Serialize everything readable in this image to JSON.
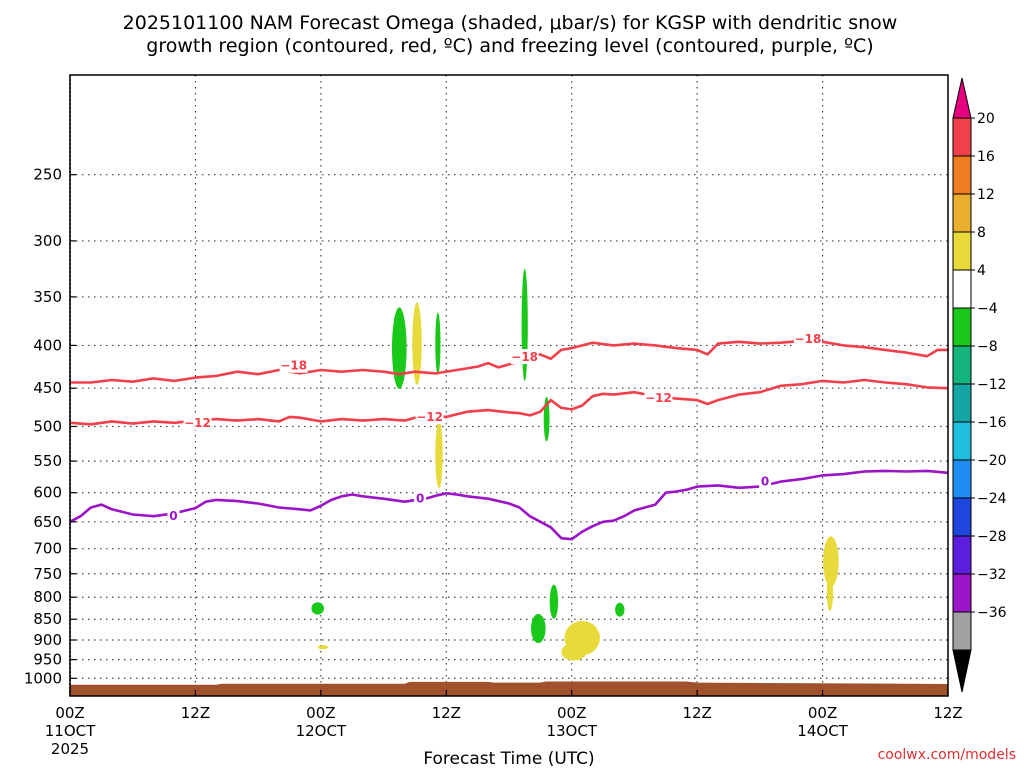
{
  "chart_data": {
    "type": "heatmap",
    "title_lines": [
      "2025101100 NAM Forecast Omega (shaded, μbar/s) for KGSP with dendritic snow",
      "growth region (contoured, red, ºC) and freezing level (contoured, purple, ºC)"
    ],
    "xlabel": "Forecast Time (UTC)",
    "ylabel": "",
    "credit": "coolwx.com/models",
    "x_hours_range": [
      0,
      84
    ],
    "y_pressure_range": [
      1050,
      190
    ],
    "grid": true,
    "x_ticks": [
      {
        "h": 0,
        "line1": "00Z",
        "line2": "11OCT",
        "line3": "2025"
      },
      {
        "h": 12,
        "line1": "12Z",
        "line2": "",
        "line3": ""
      },
      {
        "h": 24,
        "line1": "00Z",
        "line2": "12OCT",
        "line3": ""
      },
      {
        "h": 36,
        "line1": "12Z",
        "line2": "",
        "line3": ""
      },
      {
        "h": 48,
        "line1": "00Z",
        "line2": "13OCT",
        "line3": ""
      },
      {
        "h": 60,
        "line1": "12Z",
        "line2": "",
        "line3": ""
      },
      {
        "h": 72,
        "line1": "00Z",
        "line2": "14OCT",
        "line3": ""
      },
      {
        "h": 84,
        "line1": "12Z",
        "line2": "",
        "line3": ""
      }
    ],
    "y_ticks": [
      {
        "p": 250,
        "label": "250"
      },
      {
        "p": 300,
        "label": "300"
      },
      {
        "p": 350,
        "label": "350"
      },
      {
        "p": 400,
        "label": "400"
      },
      {
        "p": 450,
        "label": "450"
      },
      {
        "p": 500,
        "label": "500"
      },
      {
        "p": 550,
        "label": "550"
      },
      {
        "p": 600,
        "label": "600"
      },
      {
        "p": 650,
        "label": "650"
      },
      {
        "p": 700,
        "label": "700"
      },
      {
        "p": 750,
        "label": "750"
      },
      {
        "p": 800,
        "label": "800"
      },
      {
        "p": 850,
        "label": "850"
      },
      {
        "p": 900,
        "label": "900"
      },
      {
        "p": 950,
        "label": "950"
      },
      {
        "p": 1000,
        "label": "1000"
      }
    ],
    "colorbar": {
      "top_arrow_color": "#e6007f",
      "bottom_arrow_color": "#000000",
      "bins": [
        {
          "color": "#f2404a"
        },
        {
          "color": "#f07d1f"
        },
        {
          "color": "#e9b030"
        },
        {
          "color": "#e8da3a"
        },
        {
          "color": "#ffffff"
        },
        {
          "color": "#19c819"
        },
        {
          "color": "#14b47d"
        },
        {
          "color": "#14a5a5"
        },
        {
          "color": "#1ebedc"
        },
        {
          "color": "#1e8cf0"
        },
        {
          "color": "#1e46dc"
        },
        {
          "color": "#5a1edc"
        },
        {
          "color": "#9b14c8"
        },
        {
          "color": "#a0a0a0"
        }
      ],
      "labels": [
        "20",
        "16",
        "12",
        "8",
        "4",
        "−4",
        "−8",
        "−12",
        "−16",
        "−20",
        "−24",
        "−28",
        "−32",
        "−36"
      ]
    },
    "ground": {
      "color": "#a0522d",
      "surface": [
        {
          "h": 0,
          "p": 1018
        },
        {
          "h": 14,
          "p": 1018
        },
        {
          "h": 14.5,
          "p": 1015
        },
        {
          "h": 32,
          "p": 1015
        },
        {
          "h": 32.5,
          "p": 1010
        },
        {
          "h": 40,
          "p": 1010
        },
        {
          "h": 40.5,
          "p": 1012
        },
        {
          "h": 45,
          "p": 1012
        },
        {
          "h": 45.5,
          "p": 1009
        },
        {
          "h": 59,
          "p": 1009
        },
        {
          "h": 60,
          "p": 1012
        },
        {
          "h": 84,
          "p": 1016
        }
      ]
    },
    "omega_blobs": [
      {
        "h": 31.5,
        "p": 403,
        "rh": 0.7,
        "rp": 45,
        "color": "#19c819",
        "value": -6
      },
      {
        "h": 33.2,
        "p": 398,
        "rh": 0.45,
        "rp": 45,
        "color": "#e8da3a",
        "value": 6
      },
      {
        "h": 35.2,
        "p": 398,
        "rh": 0.25,
        "rp": 34,
        "color": "#19c819",
        "value": -6
      },
      {
        "h": 43.5,
        "p": 378,
        "rh": 0.3,
        "rp": 58,
        "color": "#19c819",
        "value": -6
      },
      {
        "h": 45.6,
        "p": 490,
        "rh": 0.28,
        "rp": 30,
        "color": "#19c819",
        "value": -6
      },
      {
        "h": 35.3,
        "p": 540,
        "rh": 0.35,
        "rp": 50,
        "color": "#e8da3a",
        "value": 6
      },
      {
        "h": 23.7,
        "p": 825,
        "rh": 0.6,
        "rp": 14,
        "color": "#19c819",
        "value": -6
      },
      {
        "h": 24.2,
        "p": 918,
        "rh": 0.5,
        "rp": 5,
        "color": "#e8da3a",
        "value": 6
      },
      {
        "h": 44.8,
        "p": 872,
        "rh": 0.7,
        "rp": 35,
        "color": "#19c819",
        "value": -6
      },
      {
        "h": 46.3,
        "p": 810,
        "rh": 0.4,
        "rp": 38,
        "color": "#19c819",
        "value": -6
      },
      {
        "h": 49.0,
        "p": 895,
        "rh": 1.7,
        "rp": 42,
        "color": "#e8da3a",
        "value": 6
      },
      {
        "h": 48.2,
        "p": 930,
        "rh": 1.2,
        "rp": 22,
        "color": "#e8da3a",
        "value": 6
      },
      {
        "h": 52.6,
        "p": 828,
        "rh": 0.45,
        "rp": 16,
        "color": "#19c819",
        "value": -6
      },
      {
        "h": 72.8,
        "p": 725,
        "rh": 0.75,
        "rp": 50,
        "color": "#e8da3a",
        "value": 6
      },
      {
        "h": 72.7,
        "p": 790,
        "rh": 0.3,
        "rp": 40,
        "color": "#e8da3a",
        "value": 6
      }
    ],
    "contours": [
      {
        "level": -18,
        "color": "#f2404a",
        "label_color": "#f2404a",
        "label": "−18",
        "points": [
          [
            0,
            443
          ],
          [
            2,
            443
          ],
          [
            4,
            440
          ],
          [
            6,
            442
          ],
          [
            8,
            438
          ],
          [
            10,
            441
          ],
          [
            12,
            437
          ],
          [
            14,
            435
          ],
          [
            16,
            430
          ],
          [
            18,
            433
          ],
          [
            20,
            428
          ],
          [
            22,
            432
          ],
          [
            24,
            428
          ],
          [
            26,
            430
          ],
          [
            28,
            428
          ],
          [
            30,
            430
          ],
          [
            31.5,
            433
          ],
          [
            33,
            430
          ],
          [
            35,
            432
          ],
          [
            37,
            428
          ],
          [
            39,
            424
          ],
          [
            40,
            420
          ],
          [
            41,
            425
          ],
          [
            43,
            418
          ],
          [
            44,
            412
          ],
          [
            45,
            410
          ],
          [
            46,
            415
          ],
          [
            47,
            405
          ],
          [
            48,
            403
          ],
          [
            49,
            400
          ],
          [
            50,
            397
          ],
          [
            52,
            400
          ],
          [
            54,
            398
          ],
          [
            56,
            400
          ],
          [
            58,
            403
          ],
          [
            60,
            405
          ],
          [
            61,
            410
          ],
          [
            62,
            398
          ],
          [
            64,
            396
          ],
          [
            66,
            398
          ],
          [
            68,
            397
          ],
          [
            70,
            395
          ],
          [
            72,
            396
          ],
          [
            74,
            400
          ],
          [
            76,
            402
          ],
          [
            78,
            405
          ],
          [
            80,
            408
          ],
          [
            82,
            412
          ],
          [
            83,
            405
          ],
          [
            84,
            405
          ]
        ],
        "labels_at": [
          {
            "h": 21.4,
            "p": 423
          },
          {
            "h": 43.5,
            "p": 413
          },
          {
            "h": 70.6,
            "p": 393
          }
        ]
      },
      {
        "level": -12,
        "color": "#f2404a",
        "label_color": "#f2404a",
        "label": "−12",
        "points": [
          [
            0,
            495
          ],
          [
            2,
            497
          ],
          [
            4,
            493
          ],
          [
            6,
            496
          ],
          [
            8,
            493
          ],
          [
            10,
            495
          ],
          [
            12,
            492
          ],
          [
            14,
            490
          ],
          [
            16,
            492
          ],
          [
            18,
            490
          ],
          [
            20,
            493
          ],
          [
            21,
            487
          ],
          [
            22,
            488
          ],
          [
            24,
            493
          ],
          [
            26,
            490
          ],
          [
            28,
            492
          ],
          [
            30,
            490
          ],
          [
            32,
            492
          ],
          [
            33,
            488
          ],
          [
            34,
            485
          ],
          [
            36,
            487
          ],
          [
            38,
            480
          ],
          [
            40,
            478
          ],
          [
            42,
            481
          ],
          [
            43,
            482
          ],
          [
            44,
            485
          ],
          [
            45,
            480
          ],
          [
            46,
            465
          ],
          [
            47,
            475
          ],
          [
            48,
            477
          ],
          [
            49,
            472
          ],
          [
            50,
            460
          ],
          [
            51,
            457
          ],
          [
            52,
            458
          ],
          [
            54,
            455
          ],
          [
            56,
            460
          ],
          [
            58,
            463
          ],
          [
            60,
            465
          ],
          [
            61,
            470
          ],
          [
            62,
            465
          ],
          [
            64,
            458
          ],
          [
            66,
            455
          ],
          [
            68,
            447
          ],
          [
            70,
            445
          ],
          [
            72,
            441
          ],
          [
            74,
            443
          ],
          [
            76,
            440
          ],
          [
            78,
            443
          ],
          [
            80,
            445
          ],
          [
            82,
            449
          ],
          [
            84,
            450
          ]
        ],
        "labels_at": [
          {
            "h": 12.2,
            "p": 495
          },
          {
            "h": 34.4,
            "p": 487
          },
          {
            "h": 56.3,
            "p": 462
          }
        ]
      },
      {
        "level": 0,
        "color": "#9b14c8",
        "label_color": "#9b14c8",
        "label": "0",
        "points": [
          [
            0,
            650
          ],
          [
            1,
            640
          ],
          [
            2,
            625
          ],
          [
            3,
            620
          ],
          [
            4,
            628
          ],
          [
            6,
            637
          ],
          [
            8,
            640
          ],
          [
            10,
            635
          ],
          [
            12,
            626
          ],
          [
            13,
            615
          ],
          [
            14,
            612
          ],
          [
            16,
            614
          ],
          [
            18,
            618
          ],
          [
            20,
            625
          ],
          [
            22,
            628
          ],
          [
            23,
            630
          ],
          [
            24,
            622
          ],
          [
            25,
            612
          ],
          [
            26,
            606
          ],
          [
            27,
            603
          ],
          [
            28,
            606
          ],
          [
            30,
            610
          ],
          [
            32,
            615
          ],
          [
            34,
            610
          ],
          [
            35,
            605
          ],
          [
            36,
            601
          ],
          [
            37,
            603
          ],
          [
            38,
            606
          ],
          [
            40,
            610
          ],
          [
            42,
            618
          ],
          [
            43,
            625
          ],
          [
            44,
            640
          ],
          [
            45,
            650
          ],
          [
            46,
            660
          ],
          [
            47,
            680
          ],
          [
            48,
            682
          ],
          [
            49,
            668
          ],
          [
            50,
            658
          ],
          [
            51,
            650
          ],
          [
            52,
            648
          ],
          [
            53,
            640
          ],
          [
            54,
            630
          ],
          [
            55,
            625
          ],
          [
            56,
            620
          ],
          [
            57,
            600
          ],
          [
            58,
            598
          ],
          [
            59,
            595
          ],
          [
            60,
            590
          ],
          [
            62,
            588
          ],
          [
            64,
            592
          ],
          [
            66,
            590
          ],
          [
            68,
            582
          ],
          [
            70,
            578
          ],
          [
            72,
            572
          ],
          [
            74,
            570
          ],
          [
            76,
            566
          ],
          [
            78,
            565
          ],
          [
            80,
            566
          ],
          [
            82,
            565
          ],
          [
            84,
            568
          ]
        ],
        "labels_at": [
          {
            "h": 9.9,
            "p": 640
          },
          {
            "h": 33.5,
            "p": 610
          },
          {
            "h": 66.5,
            "p": 582
          }
        ]
      }
    ]
  }
}
